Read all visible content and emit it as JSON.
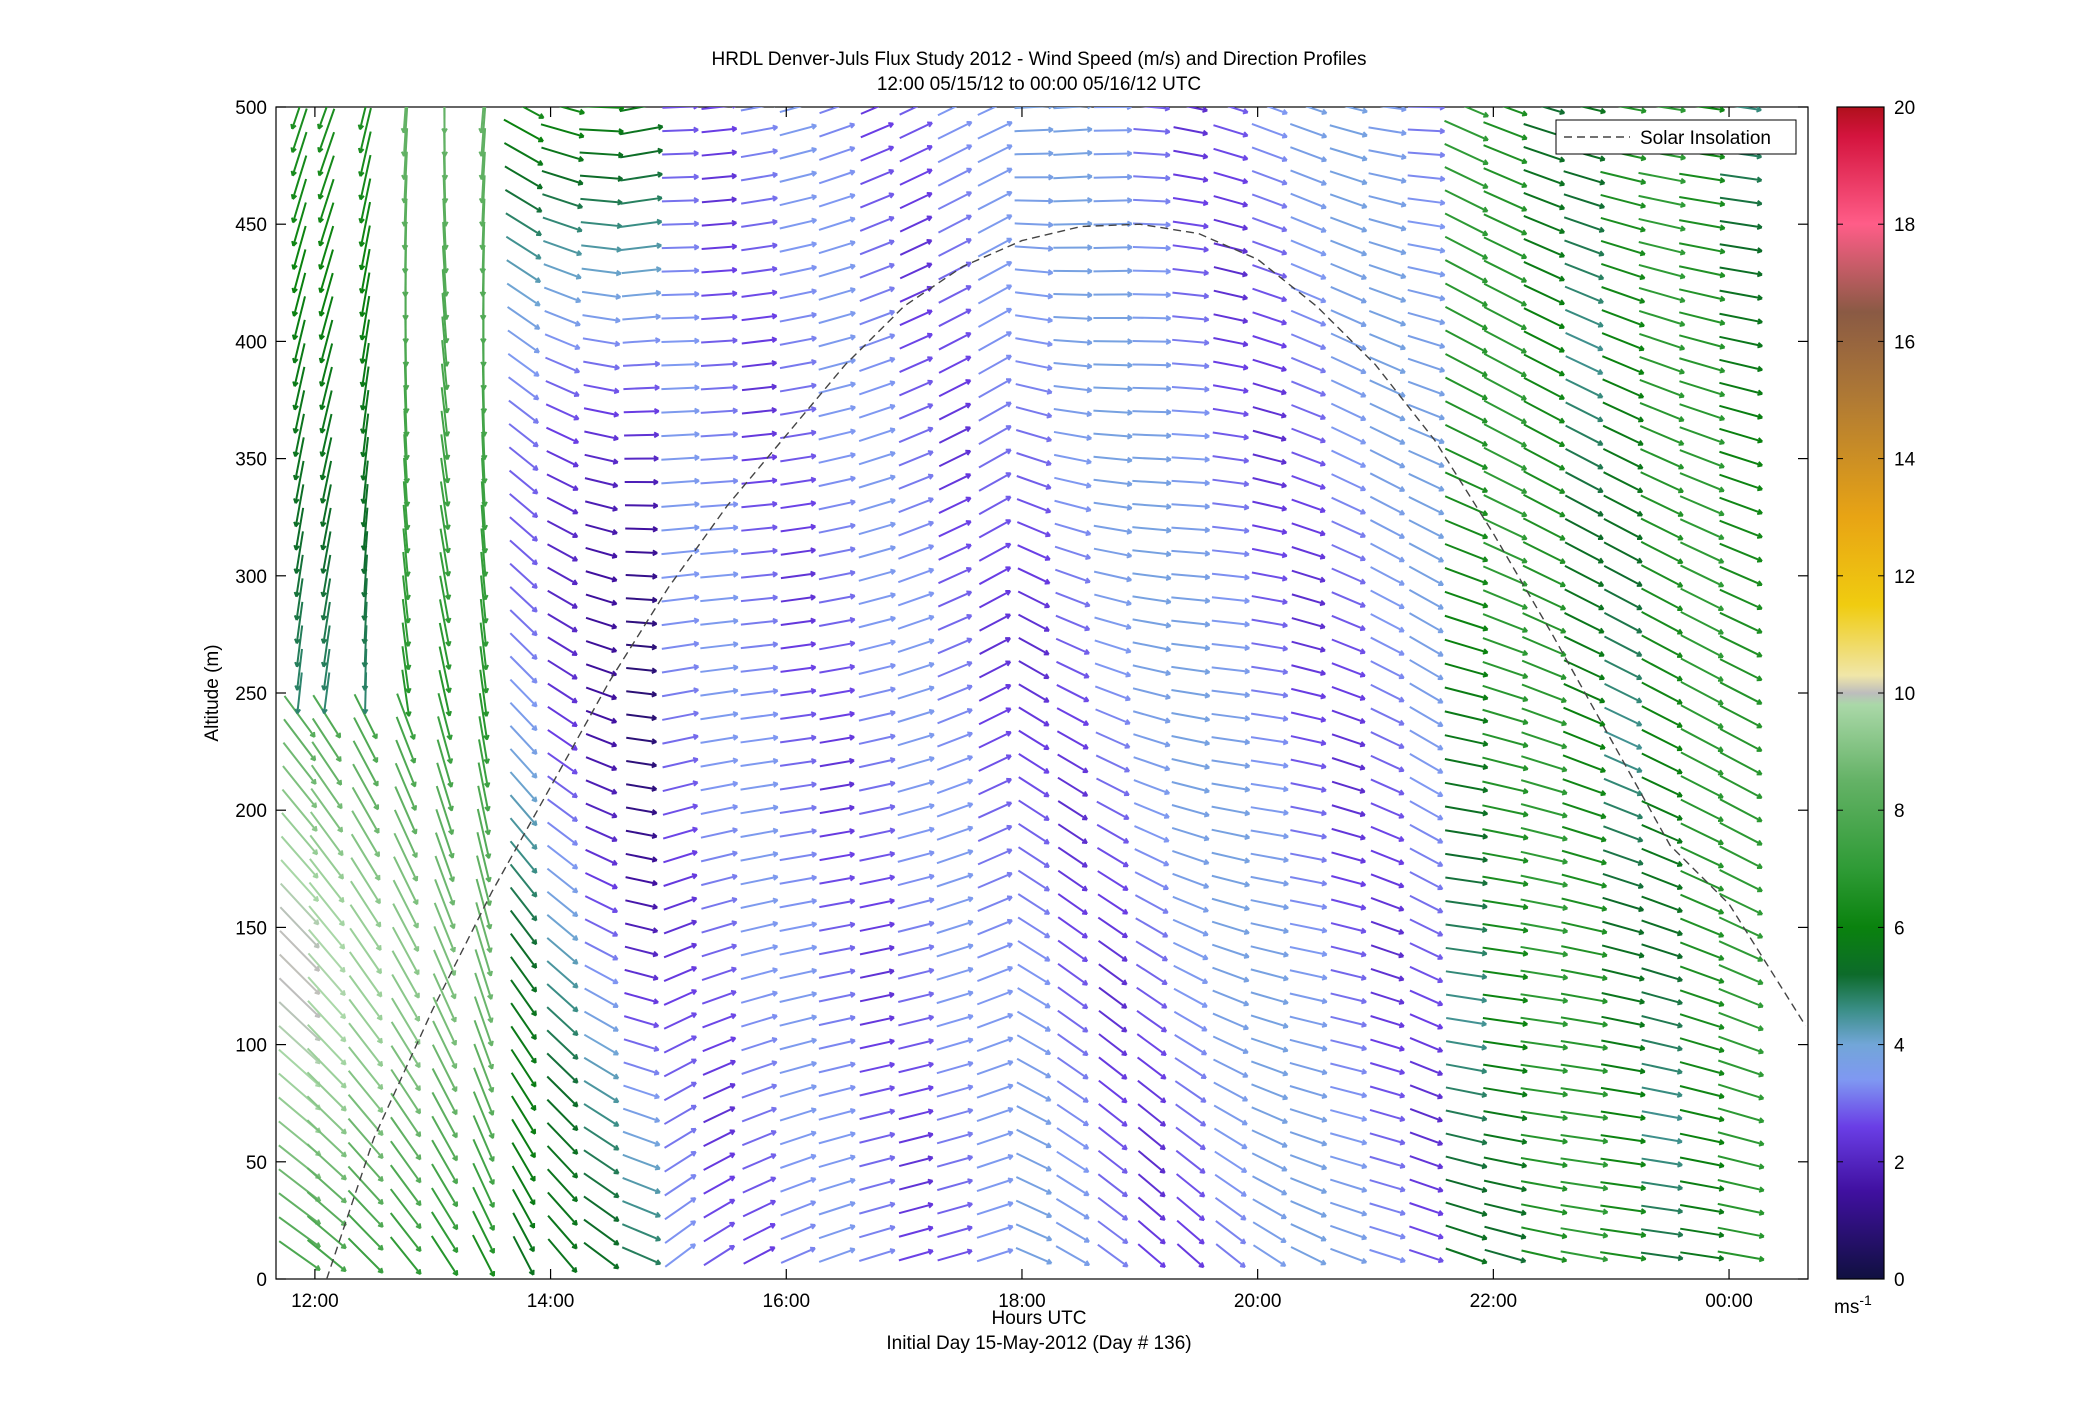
{
  "chart_data": {
    "type": "quiver",
    "title": "HRDL Denver-Juls Flux Study 2012 - Wind Speed (m/s) and Direction Profiles",
    "subtitle": "12:00 05/15/12 to 00:00 05/16/12  UTC",
    "xlabel": "Hours UTC",
    "xlabel2": "Initial Day 15-May-2012 (Day # 136)",
    "ylabel": "Altitude (m)",
    "xlim": [
      11.67,
      24.67
    ],
    "ylim": [
      0,
      500
    ],
    "x_ticks": [
      {
        "value": 12,
        "label": "12:00"
      },
      {
        "value": 14,
        "label": "14:00"
      },
      {
        "value": 16,
        "label": "16:00"
      },
      {
        "value": 18,
        "label": "18:00"
      },
      {
        "value": 20,
        "label": "20:00"
      },
      {
        "value": 22,
        "label": "22:00"
      },
      {
        "value": 24,
        "label": "00:00"
      }
    ],
    "y_ticks": [
      0,
      50,
      100,
      150,
      200,
      250,
      300,
      350,
      400,
      450,
      500
    ],
    "grid": false,
    "legend": {
      "placement": "top-right",
      "entries": [
        "Solar Insolation"
      ]
    },
    "colorbar": {
      "min": 0,
      "max": 20,
      "ticks": [
        0,
        2,
        4,
        6,
        8,
        10,
        12,
        14,
        16,
        18,
        20
      ],
      "unit_label": "ms",
      "unit_exponent": "-1",
      "stops": [
        {
          "v": 0,
          "c": "#101040"
        },
        {
          "v": 1.5,
          "c": "#4010a0"
        },
        {
          "v": 2.6,
          "c": "#6a3ee6"
        },
        {
          "v": 3.4,
          "c": "#7f98f2"
        },
        {
          "v": 4.0,
          "c": "#72a6d8"
        },
        {
          "v": 4.6,
          "c": "#3a8e86"
        },
        {
          "v": 5.2,
          "c": "#0d6b2a"
        },
        {
          "v": 6.0,
          "c": "#0a820e"
        },
        {
          "v": 7.0,
          "c": "#2f9b36"
        },
        {
          "v": 8.5,
          "c": "#64b266"
        },
        {
          "v": 9.8,
          "c": "#aad8a8"
        },
        {
          "v": 10.0,
          "c": "#bdbdbd"
        },
        {
          "v": 10.3,
          "c": "#f0e6a8"
        },
        {
          "v": 11.5,
          "c": "#f0cc10"
        },
        {
          "v": 13,
          "c": "#e8a414"
        },
        {
          "v": 15,
          "c": "#b07a34"
        },
        {
          "v": 16.5,
          "c": "#8a5a44"
        },
        {
          "v": 18,
          "c": "#ff5d88"
        },
        {
          "v": 19.5,
          "c": "#d4143e"
        },
        {
          "v": 20,
          "c": "#b0101c"
        }
      ]
    },
    "solar_insolation": {
      "style": "dashed",
      "color": "#444444",
      "x": [
        12.1,
        12.5,
        13.0,
        13.5,
        14.0,
        14.5,
        15.0,
        15.5,
        16.0,
        16.5,
        17.0,
        17.5,
        18.0,
        18.5,
        19.0,
        19.5,
        20.0,
        20.5,
        21.0,
        21.5,
        22.0,
        22.5,
        23.0,
        23.5,
        24.0,
        24.65
      ],
      "y": [
        0,
        60,
        115,
        165,
        210,
        255,
        295,
        330,
        360,
        390,
        415,
        432,
        443,
        449,
        450,
        446,
        435,
        415,
        390,
        358,
        318,
        275,
        230,
        185,
        160,
        108
      ]
    },
    "wind_field": {
      "x_times": [
        11.87,
        12.1,
        12.43,
        12.77,
        13.1,
        13.43,
        13.77,
        14.1,
        14.43,
        14.77,
        15.1,
        15.43,
        15.77,
        16.1,
        16.43,
        16.77,
        17.1,
        17.43,
        17.77,
        18.1,
        18.43,
        18.77,
        19.1,
        19.43,
        19.77,
        20.1,
        20.43,
        20.77,
        21.1,
        21.43,
        21.77,
        22.1,
        22.43,
        22.77,
        23.1,
        23.43,
        23.77,
        24.1
      ],
      "altitudes": [
        10,
        20,
        30,
        40,
        50,
        60,
        70,
        80,
        90,
        100,
        110,
        120,
        130,
        140,
        150,
        160,
        170,
        180,
        190,
        200,
        210,
        220,
        230,
        240,
        250,
        260,
        270,
        280,
        290,
        300,
        310,
        320,
        330,
        340,
        350,
        360,
        370,
        380,
        390,
        400,
        410,
        420,
        430,
        440,
        450,
        460,
        470,
        480,
        490,
        500
      ],
      "direction_convention": "arrow points in direction wind blows toward; 0 = east, 90 = north",
      "regimes": [
        {
          "time_range": "12:00-13:30",
          "alt_range": "0-250",
          "direction": "south-east",
          "speed_ms": "6-9"
        },
        {
          "time_range": "12:00-14:00",
          "alt_range": "250-500",
          "direction": "south",
          "speed_ms": "3-7"
        },
        {
          "time_range": "14:00-15:00",
          "alt_range": "0-500",
          "direction": "south to east-south-east",
          "speed_ms": "2-7"
        },
        {
          "time_range": "15:00-18:00",
          "alt_range": "0-500",
          "direction": "north-east",
          "speed_ms": "2-4"
        },
        {
          "time_range": "18:00-21:30",
          "alt_range": "0-500",
          "direction": "east to east-south-east",
          "speed_ms": "2-4"
        },
        {
          "time_range": "22:00-00:00",
          "alt_range": "0-500",
          "direction": "east-south-east",
          "speed_ms": "4-7"
        }
      ]
    }
  }
}
